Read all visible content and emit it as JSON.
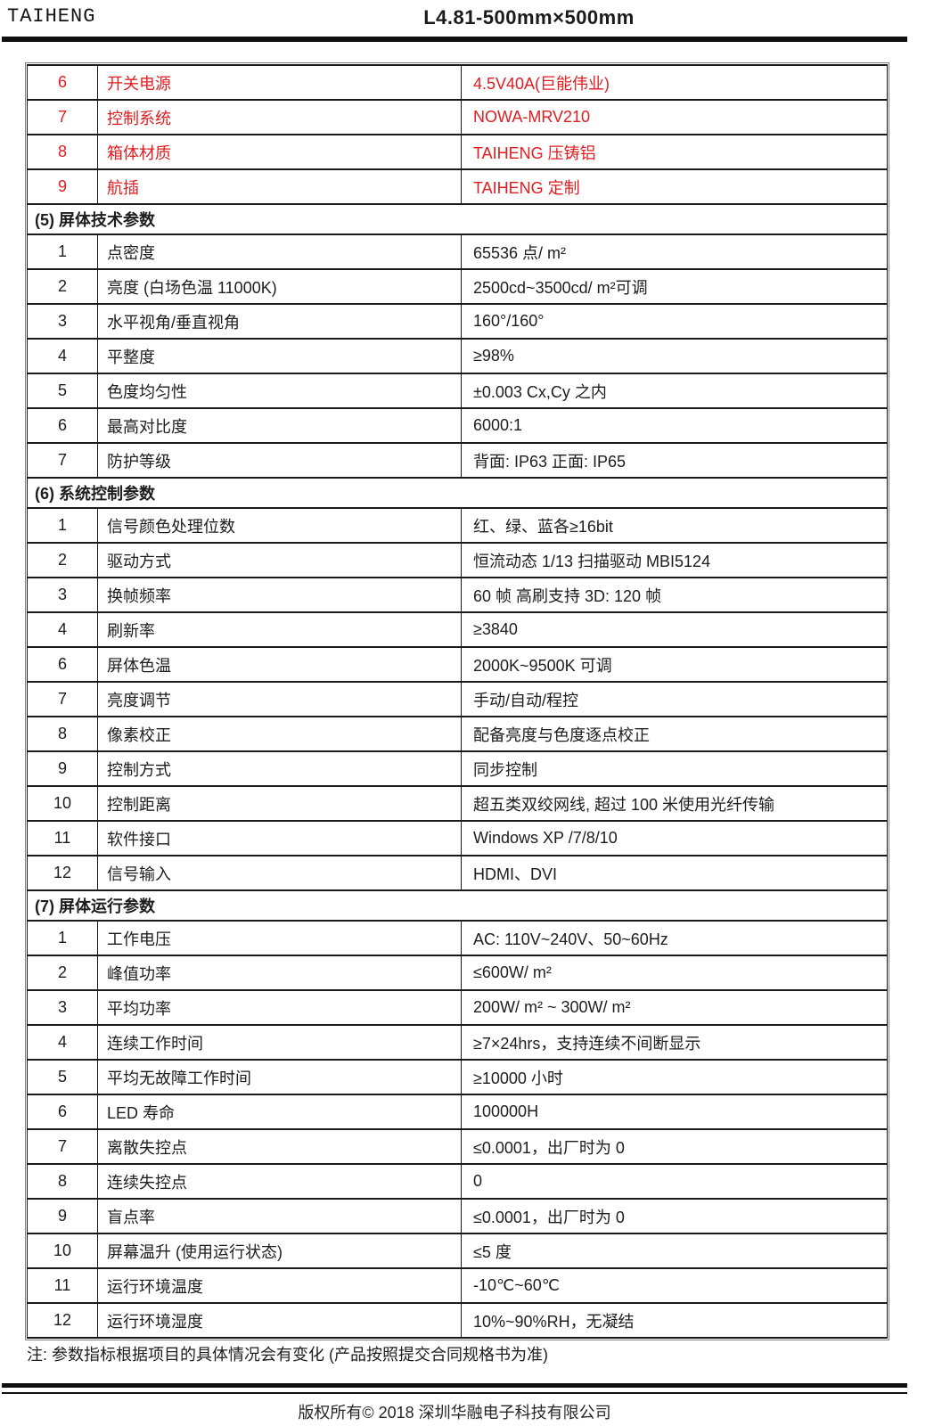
{
  "header": {
    "brand": "TAIHENG",
    "title": "L4.81-500mm×500mm"
  },
  "colors": {
    "accent_red": "#e11d1f",
    "text_black": "#1d1d1d",
    "rule_black": "#101010"
  },
  "table": {
    "rows": [
      {
        "type": "data",
        "red": true,
        "num": "6",
        "name": "开关电源",
        "value": "4.5V40A(巨能伟业)"
      },
      {
        "type": "data",
        "red": true,
        "num": "7",
        "name": "控制系统",
        "value": "NOWA-MRV210"
      },
      {
        "type": "data",
        "red": true,
        "num": "8",
        "name": "箱体材质",
        "value": "TAIHENG 压铸铝"
      },
      {
        "type": "data",
        "red": true,
        "num": "9",
        "name": "航插",
        "value": "TAIHENG 定制"
      },
      {
        "type": "section",
        "heading": "(5) 屏体技术参数"
      },
      {
        "type": "data",
        "num": "1",
        "name": "点密度",
        "value": "65536 点/ m²"
      },
      {
        "type": "data",
        "num": "2",
        "name": "亮度 (白场色温 11000K)",
        "value": "2500cd~3500cd/ m²可调"
      },
      {
        "type": "data",
        "num": "3",
        "name": "水平视角/垂直视角",
        "value": "160°/160°"
      },
      {
        "type": "data",
        "num": "4",
        "name": "平整度",
        "value": "≥98%"
      },
      {
        "type": "data",
        "num": "5",
        "name": "色度均匀性",
        "value": "±0.003   Cx,Cy 之内"
      },
      {
        "type": "data",
        "num": "6",
        "name": "最高对比度",
        "value": "6000:1"
      },
      {
        "type": "data",
        "num": "7",
        "name": "防护等级",
        "value": "背面: IP63   正面: IP65"
      },
      {
        "type": "section",
        "heading": "(6) 系统控制参数"
      },
      {
        "type": "data",
        "num": "1",
        "name": "信号颜色处理位数",
        "value": "红、绿、蓝各≥16bit"
      },
      {
        "type": "data",
        "num": "2",
        "name": "驱动方式",
        "value": "恒流动态 1/13 扫描驱动 MBI5124"
      },
      {
        "type": "data",
        "num": "3",
        "name": "换帧频率",
        "value": "60 帧  高刷支持 3D: 120 帧"
      },
      {
        "type": "data",
        "num": "4",
        "name": "刷新率",
        "value": "≥3840"
      },
      {
        "type": "data",
        "num": "6",
        "name": "屏体色温",
        "value": "2000K~9500K 可调"
      },
      {
        "type": "data",
        "num": "7",
        "name": "亮度调节",
        "value": "手动/自动/程控"
      },
      {
        "type": "data",
        "num": "8",
        "name": "像素校正",
        "value": "配备亮度与色度逐点校正"
      },
      {
        "type": "data",
        "num": "9",
        "name": "控制方式",
        "value": "同步控制"
      },
      {
        "type": "data",
        "num": "10",
        "name": "控制距离",
        "value": "超五类双绞网线, 超过 100 米使用光纤传输"
      },
      {
        "type": "data",
        "num": "11",
        "name": "软件接口",
        "value": "Windows XP /7/8/10"
      },
      {
        "type": "data",
        "num": "12",
        "name": "信号输入",
        "value": "HDMI、DVI"
      },
      {
        "type": "section",
        "heading": "(7) 屏体运行参数"
      },
      {
        "type": "data",
        "num": "1",
        "name": "工作电压",
        "value": "AC: 110V~240V、50~60Hz"
      },
      {
        "type": "data",
        "num": "2",
        "name": "峰值功率",
        "value": "≤600W/ m²"
      },
      {
        "type": "data",
        "num": "3",
        "name": "平均功率",
        "value": "200W/ m² ~ 300W/ m²"
      },
      {
        "type": "data",
        "num": "4",
        "name": "连续工作时间",
        "value": "≥7×24hrs，支持连续不间断显示"
      },
      {
        "type": "data",
        "num": "5",
        "name": "平均无故障工作时间",
        "value": "≥10000 小时"
      },
      {
        "type": "data",
        "num": "6",
        "name": "LED 寿命",
        "value": "100000H"
      },
      {
        "type": "data",
        "num": "7",
        "name": "离散失控点",
        "value": "≤0.0001，出厂时为 0"
      },
      {
        "type": "data",
        "num": "8",
        "name": "连续失控点",
        "value": "0"
      },
      {
        "type": "data",
        "num": "9",
        "name": "盲点率",
        "value": "≤0.0001，出厂时为 0"
      },
      {
        "type": "data",
        "num": "10",
        "name": "屏幕温升 (使用运行状态)",
        "value": "≤5 度"
      },
      {
        "type": "data",
        "num": "11",
        "name": "运行环境温度",
        "value": "-10℃~60℃"
      },
      {
        "type": "data",
        "num": "12",
        "name": "运行环境湿度",
        "value": "10%~90%RH，无凝结"
      }
    ]
  },
  "note": "注: 参数指标根据项目的具体情况会有变化 (产品按照提交合同规格书为准)",
  "footer": {
    "copyright": "版权所有© 2018 深圳华融电子科技有限公司"
  }
}
